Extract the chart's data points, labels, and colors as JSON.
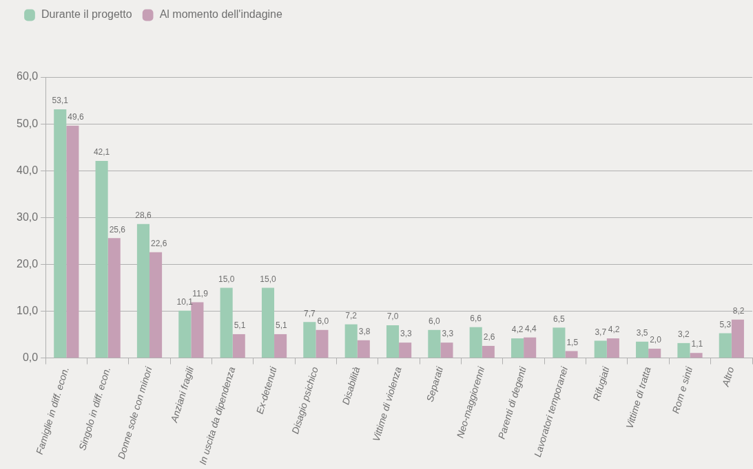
{
  "chart_data": {
    "type": "bar",
    "categories": [
      "Famiglie in diff. econ.",
      "Singolo in diff. econ.",
      "Donne sole con minori",
      "Anziani fragili",
      "In uscita da dipendenza",
      "Ex-detenuti",
      "Disagio psichico",
      "Disabilità",
      "Vittime di violenza",
      "Separati",
      "Neo-maggiorenni",
      "Parenti di degenti",
      "Lavoratori temporanei",
      "Rifugiati",
      "Vittime di tratta",
      "Rom e sinti",
      "Altro"
    ],
    "series": [
      {
        "name": "Durante il progetto",
        "color": "#9dcdb4",
        "values": [
          53.1,
          42.1,
          28.6,
          10.1,
          15.0,
          15.0,
          7.7,
          7.2,
          7.0,
          6.0,
          6.6,
          4.2,
          6.5,
          3.7,
          3.5,
          3.2,
          5.3
        ],
        "value_labels": [
          "53,1",
          "42,1",
          "28,6",
          "10,1",
          "15,0",
          "15,0",
          "7,7",
          "7,2",
          "7,0",
          "6,0",
          "6,6",
          "4,2",
          "6,5",
          "3,7",
          "3,5",
          "3,2",
          "5,3"
        ]
      },
      {
        "name": "Al momento dell'indagine",
        "color": "#c69fb5",
        "values": [
          49.6,
          25.6,
          22.6,
          11.9,
          5.1,
          5.1,
          6.0,
          3.8,
          3.3,
          3.3,
          2.6,
          4.4,
          1.5,
          4.2,
          2.0,
          1.1,
          8.2
        ],
        "value_labels": [
          "49,6",
          "25,6",
          "22,6",
          "11,9",
          "5,1",
          "5,1",
          "6,0",
          "3,8",
          "3,3",
          "3,3",
          "2,6",
          "4,4",
          "1,5",
          "4,2",
          "2,0",
          "1,1",
          "8,2"
        ]
      }
    ],
    "ylim": [
      0,
      60
    ],
    "yticks": [
      {
        "value": 0,
        "label": "0,0"
      },
      {
        "value": 10,
        "label": "10,0"
      },
      {
        "value": 20,
        "label": "20,0"
      },
      {
        "value": 30,
        "label": "30,0"
      },
      {
        "value": 40,
        "label": "40,0"
      },
      {
        "value": 50,
        "label": "50,0"
      },
      {
        "value": 60,
        "label": "60,0"
      }
    ],
    "grid": "y",
    "legend": "top left"
  }
}
